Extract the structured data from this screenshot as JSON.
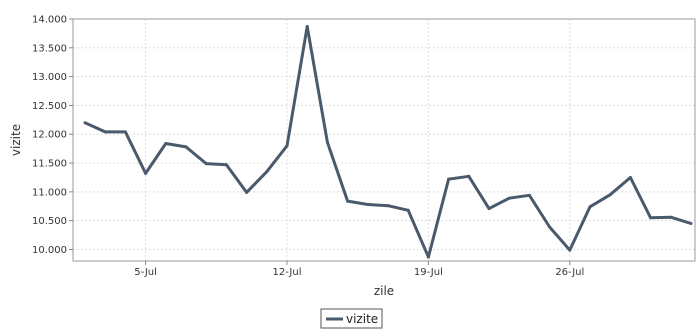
{
  "chart_data": {
    "type": "line",
    "title": "",
    "xlabel": "zile",
    "ylabel": "vizite",
    "x_start_day": 2,
    "x": [
      "2-Jul",
      "3-Jul",
      "4-Jul",
      "5-Jul",
      "6-Jul",
      "7-Jul",
      "8-Jul",
      "9-Jul",
      "10-Jul",
      "11-Jul",
      "12-Jul",
      "13-Jul",
      "14-Jul",
      "15-Jul",
      "16-Jul",
      "17-Jul",
      "18-Jul",
      "19-Jul",
      "20-Jul",
      "21-Jul",
      "22-Jul",
      "23-Jul",
      "24-Jul",
      "25-Jul",
      "26-Jul",
      "27-Jul",
      "28-Jul",
      "29-Jul",
      "30-Jul",
      "31-Jul",
      "1-Aug"
    ],
    "series": [
      {
        "name": "vizite",
        "color": "#4a5a6c",
        "values": [
          12200,
          12040,
          12040,
          11320,
          11840,
          11780,
          11490,
          11470,
          10990,
          11350,
          11800,
          13870,
          11860,
          10840,
          10780,
          10760,
          10680,
          9870,
          11220,
          11270,
          10710,
          10890,
          10940,
          10390,
          9990,
          10740,
          10950,
          11250,
          10550,
          10560,
          10450
        ]
      }
    ],
    "yticks": [
      "10.000",
      "10.500",
      "11.000",
      "11.500",
      "12.000",
      "12.500",
      "13.000",
      "13.500",
      "14.000"
    ],
    "ytick_values": [
      10000,
      10500,
      11000,
      11500,
      12000,
      12500,
      13000,
      13500,
      14000
    ],
    "xticks": [
      "5-Jul",
      "12-Jul",
      "19-Jul",
      "26-Jul"
    ],
    "xtick_values": [
      5,
      12,
      19,
      26
    ],
    "ylim": [
      9800,
      14000
    ],
    "grid": true,
    "legend_position": "bottom-center"
  }
}
